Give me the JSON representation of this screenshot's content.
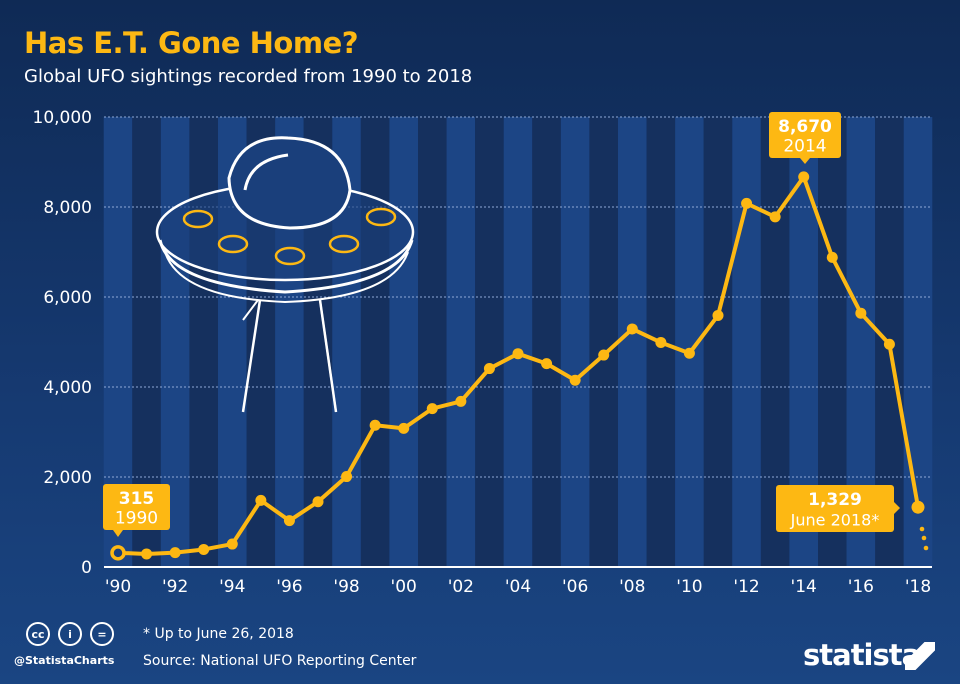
{
  "header": {
    "title": "Has E.T. Gone Home?",
    "subtitle": "Global UFO sightings recorded from 1990 to 2018"
  },
  "chart_data": {
    "type": "line",
    "x": [
      1990,
      1991,
      1992,
      1993,
      1994,
      1995,
      1996,
      1997,
      1998,
      1999,
      2000,
      2001,
      2002,
      2003,
      2004,
      2005,
      2006,
      2007,
      2008,
      2009,
      2010,
      2011,
      2012,
      2013,
      2014,
      2015,
      2016,
      2017,
      2018
    ],
    "values": [
      315,
      290,
      320,
      390,
      510,
      1480,
      1030,
      1450,
      2010,
      3150,
      3080,
      3520,
      3680,
      4410,
      4740,
      4520,
      4150,
      4710,
      5290,
      4990,
      4750,
      5590,
      8080,
      7780,
      8670,
      6880,
      5640,
      4950,
      1329
    ],
    "ylim": [
      0,
      10000
    ],
    "yticks": [
      "0",
      "2,000",
      "4,000",
      "6,000",
      "8,000",
      "10,000"
    ],
    "xtick_labels": [
      "'90",
      "'92",
      "'94",
      "'96",
      "'98",
      "'00",
      "'02",
      "'04",
      "'06",
      "'08",
      "'10",
      "'12",
      "'14",
      "'16",
      "'18"
    ],
    "grid": true,
    "line_color": "#fdb813",
    "annotations": [
      {
        "value": "315",
        "label": "1990"
      },
      {
        "value": "8,670",
        "label": "2014"
      },
      {
        "value": "1,329",
        "label": "June 2018*"
      }
    ]
  },
  "footer": {
    "note": "* Up to June 26, 2018",
    "source": "Source: National UFO Reporting Center",
    "handle": "@StatistaCharts",
    "logo": "statista",
    "cc_icons": [
      "cc",
      "by",
      "nd"
    ]
  },
  "colors": {
    "accent": "#fdb813",
    "background": "#15305e",
    "stripe": "#1c4585"
  }
}
